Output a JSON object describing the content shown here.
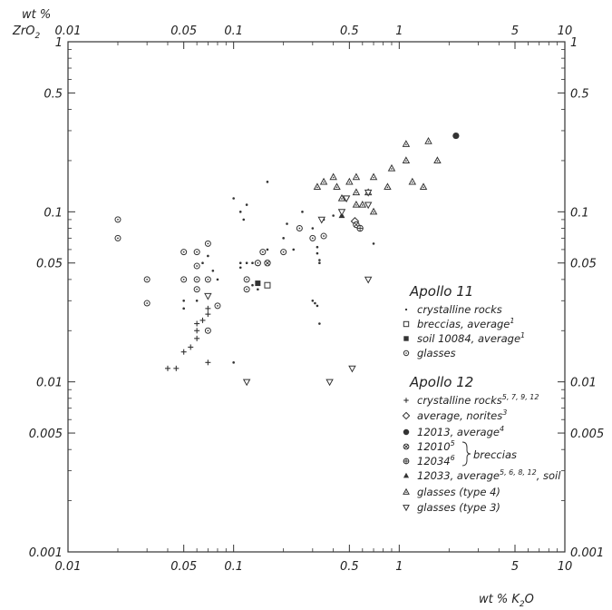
{
  "chart_data": {
    "type": "scatter",
    "x_scale": "log",
    "y_scale": "log",
    "xlim": [
      0.01,
      10
    ],
    "ylim": [
      0.001,
      1
    ],
    "grid": false,
    "legend_position": "right",
    "x_axis_label": "wt % K2O",
    "y_axis_label": "wt % ZrO2",
    "x_ticks": [
      {
        "value": 0.01,
        "label": "0.01"
      },
      {
        "value": 0.05,
        "label": "0.05"
      },
      {
        "value": 0.1,
        "label": "0.1"
      },
      {
        "value": 0.5,
        "label": "0.5"
      },
      {
        "value": 1,
        "label": "1"
      },
      {
        "value": 5,
        "label": "5"
      },
      {
        "value": 10,
        "label": "10"
      }
    ],
    "y_ticks": [
      {
        "value": 0.001,
        "label": "0.001"
      },
      {
        "value": 0.005,
        "label": "0.005"
      },
      {
        "value": 0.01,
        "label": "0.01"
      },
      {
        "value": 0.05,
        "label": "0.05"
      },
      {
        "value": 0.1,
        "label": "0.1"
      },
      {
        "value": 0.5,
        "label": "0.5"
      },
      {
        "value": 1,
        "label": "1"
      }
    ],
    "legend": {
      "apollo11_title": "Apollo 11",
      "apollo12_title": "Apollo 12",
      "breccias_label": "breccias"
    },
    "series": [
      {
        "name": "crystalline rocks",
        "group": "Apollo 11",
        "sup": "",
        "marker": "dot",
        "points": [
          [
            0.16,
            0.15
          ],
          [
            0.1,
            0.12
          ],
          [
            0.11,
            0.1
          ],
          [
            0.115,
            0.09
          ],
          [
            0.12,
            0.11
          ],
          [
            0.07,
            0.055
          ],
          [
            0.075,
            0.045
          ],
          [
            0.065,
            0.05
          ],
          [
            0.05,
            0.03
          ],
          [
            0.06,
            0.03
          ],
          [
            0.05,
            0.027
          ],
          [
            0.11,
            0.05
          ],
          [
            0.11,
            0.047
          ],
          [
            0.12,
            0.05
          ],
          [
            0.13,
            0.05
          ],
          [
            0.13,
            0.037
          ],
          [
            0.14,
            0.035
          ],
          [
            0.21,
            0.085
          ],
          [
            0.2,
            0.07
          ],
          [
            0.23,
            0.06
          ],
          [
            0.26,
            0.1
          ],
          [
            0.3,
            0.08
          ],
          [
            0.3,
            0.07
          ],
          [
            0.32,
            0.062
          ],
          [
            0.32,
            0.057
          ],
          [
            0.33,
            0.052
          ],
          [
            0.33,
            0.05
          ],
          [
            0.35,
            0.09
          ],
          [
            0.3,
            0.03
          ],
          [
            0.31,
            0.029
          ],
          [
            0.32,
            0.028
          ],
          [
            0.33,
            0.022
          ],
          [
            0.4,
            0.095
          ],
          [
            0.7,
            0.065
          ],
          [
            0.16,
            0.06
          ],
          [
            0.08,
            0.04
          ],
          [
            0.1,
            0.013
          ]
        ]
      },
      {
        "name": "breccias, average",
        "group": "Apollo 11",
        "sup": "1",
        "marker": "square-open",
        "points": [
          [
            0.16,
            0.037
          ]
        ]
      },
      {
        "name": "soil 10084, average",
        "group": "Apollo 11",
        "sup": "1",
        "marker": "square-filled",
        "points": [
          [
            0.14,
            0.038
          ]
        ]
      },
      {
        "name": "glasses",
        "group": "Apollo 11",
        "sup": "",
        "marker": "circle-dot",
        "points": [
          [
            0.02,
            0.09
          ],
          [
            0.02,
            0.07
          ],
          [
            0.03,
            0.04
          ],
          [
            0.03,
            0.029
          ],
          [
            0.05,
            0.058
          ],
          [
            0.05,
            0.04
          ],
          [
            0.06,
            0.058
          ],
          [
            0.06,
            0.048
          ],
          [
            0.06,
            0.04
          ],
          [
            0.07,
            0.065
          ],
          [
            0.07,
            0.04
          ],
          [
            0.08,
            0.028
          ],
          [
            0.07,
            0.02
          ],
          [
            0.12,
            0.04
          ],
          [
            0.12,
            0.035
          ],
          [
            0.14,
            0.05
          ],
          [
            0.15,
            0.058
          ],
          [
            0.14,
            0.05
          ],
          [
            0.2,
            0.058
          ],
          [
            0.25,
            0.08
          ],
          [
            0.3,
            0.07
          ],
          [
            0.35,
            0.072
          ],
          [
            0.06,
            0.035
          ]
        ]
      },
      {
        "name": "crystalline rocks",
        "group": "Apollo 12",
        "sup": "5, 7, 9, 12",
        "marker": "plus",
        "points": [
          [
            0.04,
            0.012
          ],
          [
            0.045,
            0.012
          ],
          [
            0.05,
            0.015
          ],
          [
            0.055,
            0.016
          ],
          [
            0.06,
            0.018
          ],
          [
            0.06,
            0.02
          ],
          [
            0.06,
            0.022
          ],
          [
            0.065,
            0.023
          ],
          [
            0.07,
            0.025
          ],
          [
            0.07,
            0.027
          ],
          [
            0.07,
            0.013
          ]
        ]
      },
      {
        "name": "average, norites",
        "group": "Apollo 12",
        "sup": "3",
        "marker": "diamond-open",
        "points": [
          [
            0.54,
            0.088
          ]
        ]
      },
      {
        "name": "12013, average",
        "group": "Apollo 12",
        "sup": "4",
        "marker": "circle-filled",
        "points": [
          [
            2.2,
            0.28
          ]
        ]
      },
      {
        "name": "12010",
        "group": "Apollo 12",
        "sup": "5",
        "marker": "circle-x",
        "points": [
          [
            0.16,
            0.05
          ],
          [
            0.55,
            0.084
          ]
        ]
      },
      {
        "name": "12034",
        "group": "Apollo 12",
        "sup": "6",
        "marker": "circle-plus",
        "points": [
          [
            0.58,
            0.08
          ]
        ]
      },
      {
        "name": "12033, average",
        "group": "Apollo 12",
        "sup": "5, 6, 8, 12",
        "suffix": ", soil",
        "marker": "triangle-filled",
        "points": [
          [
            0.45,
            0.095
          ]
        ]
      },
      {
        "name": "glasses (type 4)",
        "group": "Apollo 12",
        "sup": "",
        "marker": "triangle-open",
        "points": [
          [
            1.1,
            0.25
          ],
          [
            1.1,
            0.2
          ],
          [
            1.5,
            0.26
          ],
          [
            1.7,
            0.2
          ],
          [
            0.9,
            0.18
          ],
          [
            0.7,
            0.16
          ],
          [
            0.55,
            0.16
          ],
          [
            0.4,
            0.16
          ],
          [
            0.35,
            0.15
          ],
          [
            0.32,
            0.14
          ],
          [
            0.42,
            0.14
          ],
          [
            0.5,
            0.15
          ],
          [
            0.55,
            0.13
          ],
          [
            0.65,
            0.13
          ],
          [
            0.45,
            0.12
          ],
          [
            0.6,
            0.11
          ],
          [
            1.2,
            0.15
          ],
          [
            1.4,
            0.14
          ],
          [
            0.85,
            0.14
          ],
          [
            0.7,
            0.1
          ],
          [
            0.55,
            0.11
          ]
        ]
      },
      {
        "name": "glasses (type 3)",
        "group": "Apollo 12",
        "sup": "",
        "marker": "triangle-down-open",
        "points": [
          [
            0.07,
            0.032
          ],
          [
            0.34,
            0.09
          ],
          [
            0.48,
            0.12
          ],
          [
            0.65,
            0.13
          ],
          [
            0.65,
            0.11
          ],
          [
            0.65,
            0.04
          ],
          [
            0.45,
            0.1
          ],
          [
            0.12,
            0.01
          ],
          [
            0.38,
            0.01
          ],
          [
            0.52,
            0.012
          ]
        ]
      }
    ]
  }
}
